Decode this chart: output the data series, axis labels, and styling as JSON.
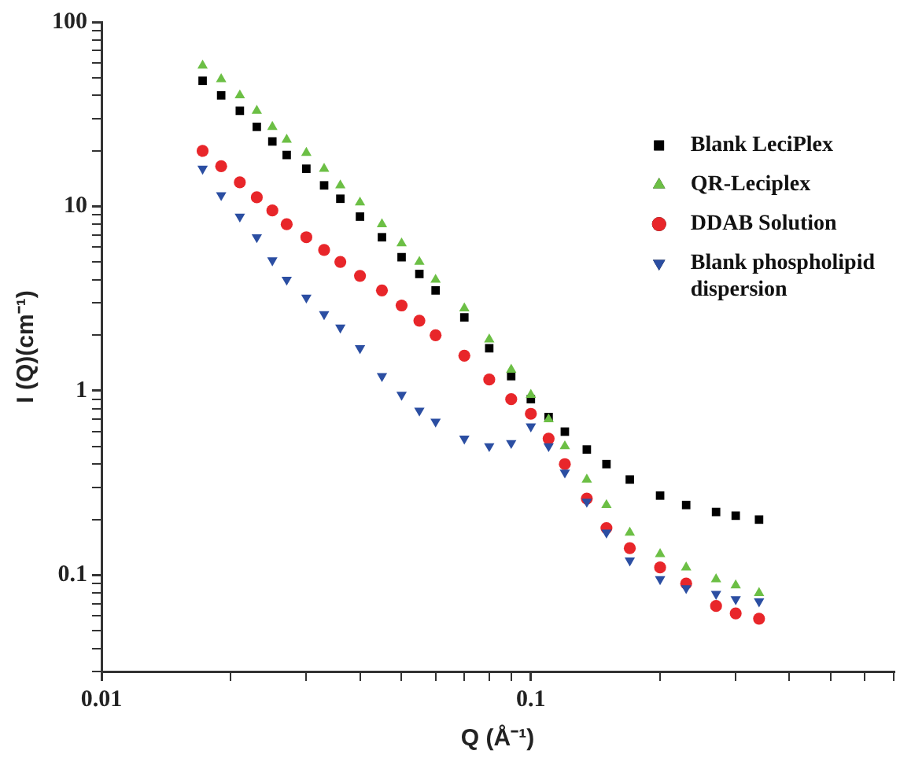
{
  "chart_data": {
    "type": "scatter",
    "xlabel": "Q (Å⁻¹)",
    "ylabel": "I (Q)(cm⁻¹)",
    "log": "xy",
    "grid": false,
    "legend": "top right",
    "x": [
      0.0172,
      0.019,
      0.021,
      0.023,
      0.025,
      0.027,
      0.03,
      0.033,
      0.036,
      0.04,
      0.045,
      0.05,
      0.055,
      0.06,
      0.07,
      0.08,
      0.09,
      0.1,
      0.11,
      0.12,
      0.135,
      0.15,
      0.17,
      0.2,
      0.23,
      0.27,
      0.3,
      0.34
    ],
    "xlim": [
      0.01,
      0.7
    ],
    "xticks": [
      0.01,
      {
        "value": 0.02,
        "label": null
      },
      {
        "value": 0.03,
        "label": null
      },
      {
        "value": 0.04,
        "label": null
      },
      {
        "value": 0.05,
        "label": null
      },
      {
        "value": 0.06,
        "label": null
      },
      {
        "value": 0.07,
        "label": null
      },
      {
        "value": 0.08,
        "label": null
      },
      {
        "value": 0.09,
        "label": null
      },
      0.1,
      {
        "value": 0.2,
        "label": null
      },
      {
        "value": 0.3,
        "label": null
      },
      {
        "value": 0.4,
        "label": null
      },
      {
        "value": 0.5,
        "label": null
      },
      {
        "value": 0.6,
        "label": null
      },
      {
        "value": 0.7,
        "label": null
      }
    ],
    "ylim": [
      0.03,
      100
    ],
    "yticks": [
      {
        "value": 0.03,
        "label": null
      },
      {
        "value": 0.04,
        "label": null
      },
      {
        "value": 0.05,
        "label": null
      },
      {
        "value": 0.06,
        "label": null
      },
      {
        "value": 0.07,
        "label": null
      },
      {
        "value": 0.08,
        "label": null
      },
      {
        "value": 0.09,
        "label": null
      },
      0.1,
      {
        "value": 0.2,
        "label": null
      },
      {
        "value": 0.3,
        "label": null
      },
      {
        "value": 0.4,
        "label": null
      },
      {
        "value": 0.5,
        "label": null
      },
      {
        "value": 0.6,
        "label": null
      },
      {
        "value": 0.7,
        "label": null
      },
      {
        "value": 0.8,
        "label": null
      },
      {
        "value": 0.9,
        "label": null
      },
      1,
      {
        "value": 2,
        "label": null
      },
      {
        "value": 3,
        "label": null
      },
      {
        "value": 4,
        "label": null
      },
      {
        "value": 5,
        "label": null
      },
      {
        "value": 6,
        "label": null
      },
      {
        "value": 7,
        "label": null
      },
      {
        "value": 8,
        "label": null
      },
      {
        "value": 9,
        "label": null
      },
      10,
      {
        "value": 20,
        "label": null
      },
      {
        "value": 30,
        "label": null
      },
      {
        "value": 40,
        "label": null
      },
      {
        "value": 50,
        "label": null
      },
      {
        "value": 60,
        "label": null
      },
      {
        "value": 70,
        "label": null
      },
      {
        "value": 80,
        "label": null
      },
      {
        "value": 90,
        "label": null
      },
      100
    ],
    "series": [
      {
        "name": "Blank LeciPlex",
        "color": "#000000",
        "marker": "square",
        "values": [
          48,
          40,
          33,
          27,
          22.5,
          19,
          16,
          13,
          11,
          8.8,
          6.8,
          5.3,
          4.3,
          3.5,
          2.5,
          1.7,
          1.2,
          0.9,
          0.72,
          0.6,
          0.48,
          0.4,
          0.33,
          0.27,
          0.24,
          0.22,
          0.21,
          0.2
        ]
      },
      {
        "name": "QR-Leciplex",
        "color": "#6cbf45",
        "marker": "triangle",
        "values": [
          58,
          49,
          40,
          33,
          27,
          23,
          19.5,
          16,
          13,
          10.5,
          8,
          6.3,
          5,
          4,
          2.8,
          1.9,
          1.3,
          0.95,
          0.7,
          0.5,
          0.33,
          0.24,
          0.17,
          0.13,
          0.11,
          0.095,
          0.088,
          0.08
        ]
      },
      {
        "name": "DDAB Solution",
        "color": "#e8262a",
        "marker": "circle",
        "values": [
          20,
          16.5,
          13.5,
          11.2,
          9.5,
          8,
          6.8,
          5.8,
          5,
          4.2,
          3.5,
          2.9,
          2.4,
          2,
          1.55,
          1.15,
          0.9,
          0.75,
          0.55,
          0.4,
          0.26,
          0.18,
          0.14,
          0.11,
          0.09,
          0.068,
          0.062,
          0.058
        ]
      },
      {
        "name": "Blank phospholipid dispersion",
        "color": "#2b4ea2",
        "marker": "triangle-down",
        "values": [
          16,
          11.5,
          8.8,
          6.8,
          5.1,
          4,
          3.2,
          2.6,
          2.2,
          1.7,
          1.2,
          0.95,
          0.78,
          0.68,
          0.55,
          0.5,
          0.52,
          0.64,
          0.5,
          0.36,
          0.25,
          0.17,
          0.12,
          0.095,
          0.085,
          0.079,
          0.074,
          0.072
        ]
      }
    ]
  }
}
